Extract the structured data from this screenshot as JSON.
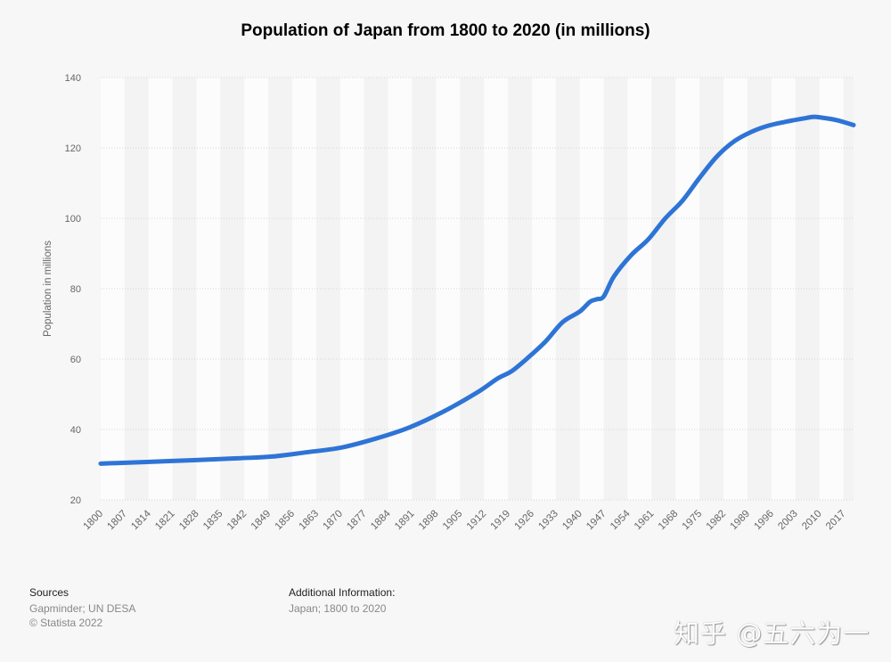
{
  "chart_data": {
    "type": "line",
    "title": "Population of Japan from 1800 to 2020 (in millions)",
    "xlabel": "",
    "ylabel": "Population in millions",
    "xlim": [
      1800,
      2020
    ],
    "ylim": [
      20,
      140
    ],
    "yticks": [
      20,
      40,
      60,
      80,
      100,
      120,
      140
    ],
    "xticks": [
      "1800",
      "1807",
      "1814",
      "1821",
      "1828",
      "1835",
      "1842",
      "1849",
      "1856",
      "1863",
      "1870",
      "1877",
      "1884",
      "1891",
      "1898",
      "1905",
      "1912",
      "1919",
      "1926",
      "1933",
      "1940",
      "1947",
      "1954",
      "1961",
      "1968",
      "1975",
      "1982",
      "1989",
      "1996",
      "2003",
      "2010",
      "2017"
    ],
    "grid": true,
    "color": "#2e74d6",
    "series": [
      {
        "x": [
          1800,
          1820,
          1840,
          1850,
          1860,
          1870,
          1880,
          1890,
          1900,
          1910,
          1916,
          1920,
          1925,
          1930,
          1935,
          1940,
          1943,
          1945,
          1947,
          1950,
          1955,
          1960,
          1965,
          1970,
          1975,
          1980,
          1985,
          1990,
          1995,
          2000,
          2005,
          2008,
          2010,
          2015,
          2020
        ],
        "y": [
          30.3,
          31.0,
          31.8,
          32.3,
          33.5,
          34.8,
          37.3,
          40.5,
          45.0,
          50.5,
          54.5,
          56.5,
          60.5,
          65.0,
          70.5,
          73.5,
          76.3,
          77.0,
          77.8,
          83.5,
          89.5,
          94.0,
          100.0,
          105.0,
          111.5,
          117.5,
          121.8,
          124.5,
          126.3,
          127.4,
          128.3,
          128.8,
          128.7,
          127.9,
          126.5
        ]
      }
    ]
  },
  "footer": {
    "sources_label": "Sources",
    "sources": "Gapminder; UN DESA",
    "copyright": "© Statista 2022",
    "additional_label": "Additional Information:",
    "additional": "Japan; 1800 to 2020"
  },
  "watermark": "知乎 @五六为一"
}
